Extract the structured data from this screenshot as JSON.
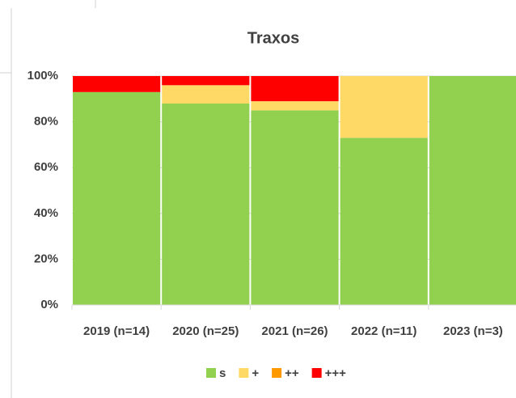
{
  "chart_data": {
    "type": "stacked_bar",
    "title": "Traxos",
    "categories": [
      "2019 (n=14)",
      "2020 (n=25)",
      "2021 (n=26)",
      "2022 (n=11)",
      "2023 (n=3)"
    ],
    "series": [
      {
        "name": "s",
        "color": "#92d050",
        "values": [
          93,
          88,
          85,
          73,
          100
        ]
      },
      {
        "name": "+",
        "color": "#ffd966",
        "values": [
          0,
          8,
          4,
          27,
          0
        ]
      },
      {
        "name": "++",
        "color": "#ff9900",
        "values": [
          0,
          0,
          0,
          0,
          0
        ]
      },
      {
        "name": "+++",
        "color": "#ff0000",
        "values": [
          7,
          4,
          11,
          0,
          0
        ]
      }
    ],
    "ylim": [
      0,
      100
    ],
    "yticks": [
      {
        "value": 0,
        "label": "0%"
      },
      {
        "value": 20,
        "label": "20%"
      },
      {
        "value": 40,
        "label": "40%"
      },
      {
        "value": 60,
        "label": "60%"
      },
      {
        "value": 80,
        "label": "80%"
      },
      {
        "value": 100,
        "label": "100%"
      }
    ],
    "grid": true,
    "legend": "bottom"
  }
}
